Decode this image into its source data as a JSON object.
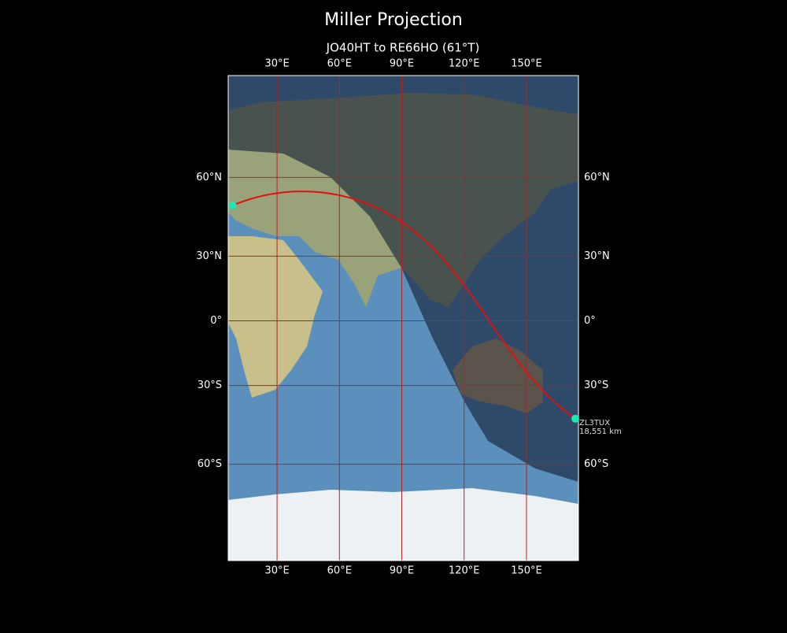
{
  "title": "Miller Projection",
  "subtitle": "JO40HT to RE66HO (61°T)",
  "map": {
    "projection": "miller",
    "xlim": [
      6.5,
      175
    ],
    "ylim": [
      -84,
      85
    ],
    "grid_color": "#b22222",
    "xticks": [
      {
        "value": 30,
        "label": "30°E"
      },
      {
        "value": 60,
        "label": "60°E"
      },
      {
        "value": 90,
        "label": "90°E"
      },
      {
        "value": 120,
        "label": "120°E"
      },
      {
        "value": 150,
        "label": "150°E"
      }
    ],
    "yticks": [
      {
        "value": 60,
        "label": "60°N"
      },
      {
        "value": 30,
        "label": "30°N"
      },
      {
        "value": 0,
        "label": "0°"
      },
      {
        "value": -30,
        "label": "30°S"
      },
      {
        "value": -60,
        "label": "60°S"
      }
    ],
    "path_color": "#e01010",
    "marker_color": "#1de9b6",
    "points": [
      {
        "lat": 50.4,
        "lon": 8.6
      },
      {
        "lat": -43.8,
        "lon": 173.5,
        "label": "ZL3TUX",
        "distance": "18,551 km"
      }
    ]
  }
}
